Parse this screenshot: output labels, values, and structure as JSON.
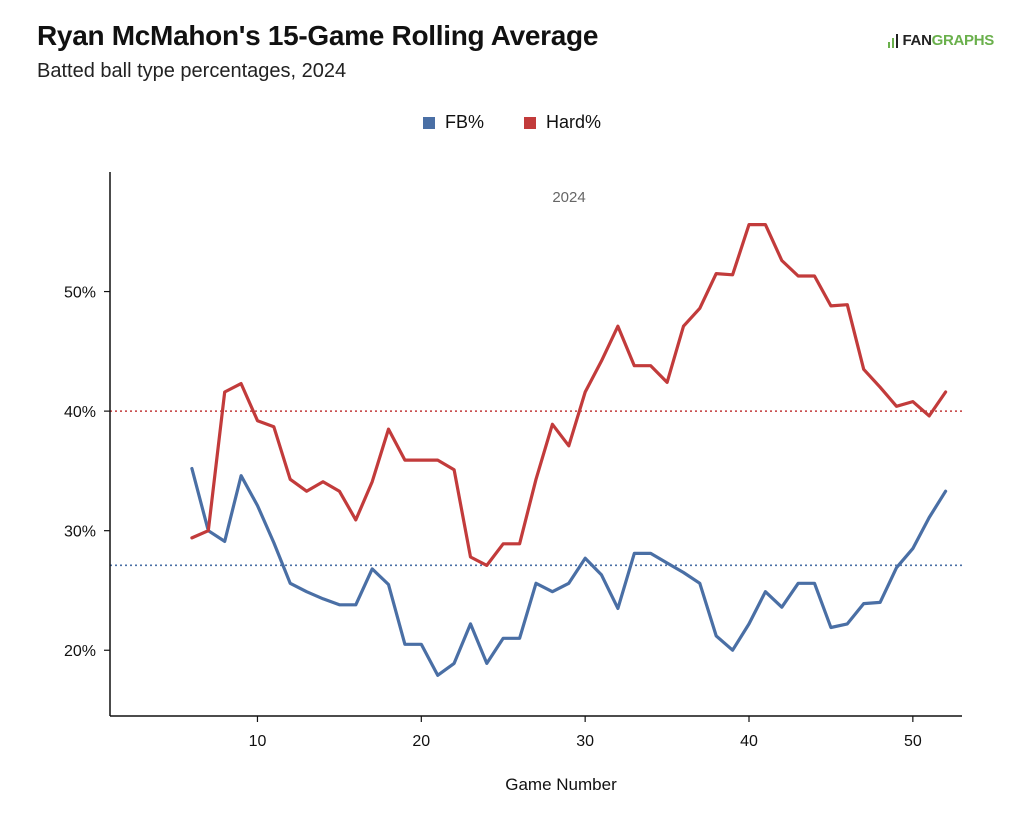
{
  "header": {
    "title": "Ryan McMahon's 15-Game Rolling Average",
    "subtitle": "Batted ball type percentages, 2024"
  },
  "logo": {
    "text_part1": "FAN",
    "text_part2": "GRAPHS",
    "icon": "fangraphs-logo-icon",
    "accent_color": "#6ab04c"
  },
  "chart_data": {
    "type": "line",
    "title": "Ryan McMahon's 15-Game Rolling Average",
    "subtitle": "Batted ball type percentages, 2024",
    "xlabel": "Game Number",
    "ylabel": "",
    "annotation": "2024",
    "xlim": [
      1,
      53
    ],
    "ylim": [
      14.5,
      60
    ],
    "x_ticks": [
      10,
      20,
      30,
      40,
      50
    ],
    "y_ticks": [
      20,
      30,
      40,
      50
    ],
    "y_tick_labels": [
      "20%",
      "30%",
      "40%",
      "50%"
    ],
    "legend_position": "top-center",
    "grid": false,
    "x": [
      6,
      7,
      8,
      9,
      10,
      11,
      12,
      13,
      14,
      15,
      16,
      17,
      18,
      19,
      20,
      21,
      22,
      23,
      24,
      25,
      26,
      27,
      28,
      29,
      30,
      31,
      32,
      33,
      34,
      35,
      36,
      37,
      38,
      39,
      40,
      41,
      42,
      43,
      44,
      45,
      46,
      47,
      48,
      49,
      50,
      51,
      52
    ],
    "series": [
      {
        "name": "FB%",
        "color": "#4a6fa5",
        "reference_line": 27.1,
        "values": [
          35.2,
          30.0,
          29.1,
          34.6,
          32.1,
          29.0,
          25.6,
          24.9,
          24.3,
          23.8,
          23.8,
          26.8,
          25.5,
          20.5,
          20.5,
          17.9,
          18.9,
          22.2,
          18.9,
          21.0,
          21.0,
          25.6,
          24.9,
          25.6,
          27.7,
          26.3,
          23.5,
          28.1,
          28.1,
          27.3,
          26.5,
          25.6,
          21.2,
          20.0,
          22.2,
          24.9,
          23.6,
          25.6,
          25.6,
          21.9,
          22.2,
          23.9,
          24.0,
          26.9,
          28.5,
          31.1,
          33.3
        ]
      },
      {
        "name": "Hard%",
        "color": "#c23b3b",
        "reference_line": 40.0,
        "values": [
          29.4,
          30.0,
          41.6,
          42.3,
          39.2,
          38.7,
          34.3,
          33.3,
          34.1,
          33.3,
          30.9,
          34.1,
          38.5,
          35.9,
          35.9,
          35.9,
          35.1,
          27.8,
          27.1,
          28.9,
          28.9,
          34.3,
          38.9,
          37.1,
          41.6,
          44.2,
          47.1,
          43.8,
          43.8,
          42.4,
          47.1,
          48.6,
          51.5,
          51.4,
          55.6,
          55.6,
          52.6,
          51.3,
          51.3,
          48.8,
          48.9,
          43.5,
          42.0,
          40.4,
          40.8,
          39.6,
          41.6
        ]
      }
    ]
  }
}
